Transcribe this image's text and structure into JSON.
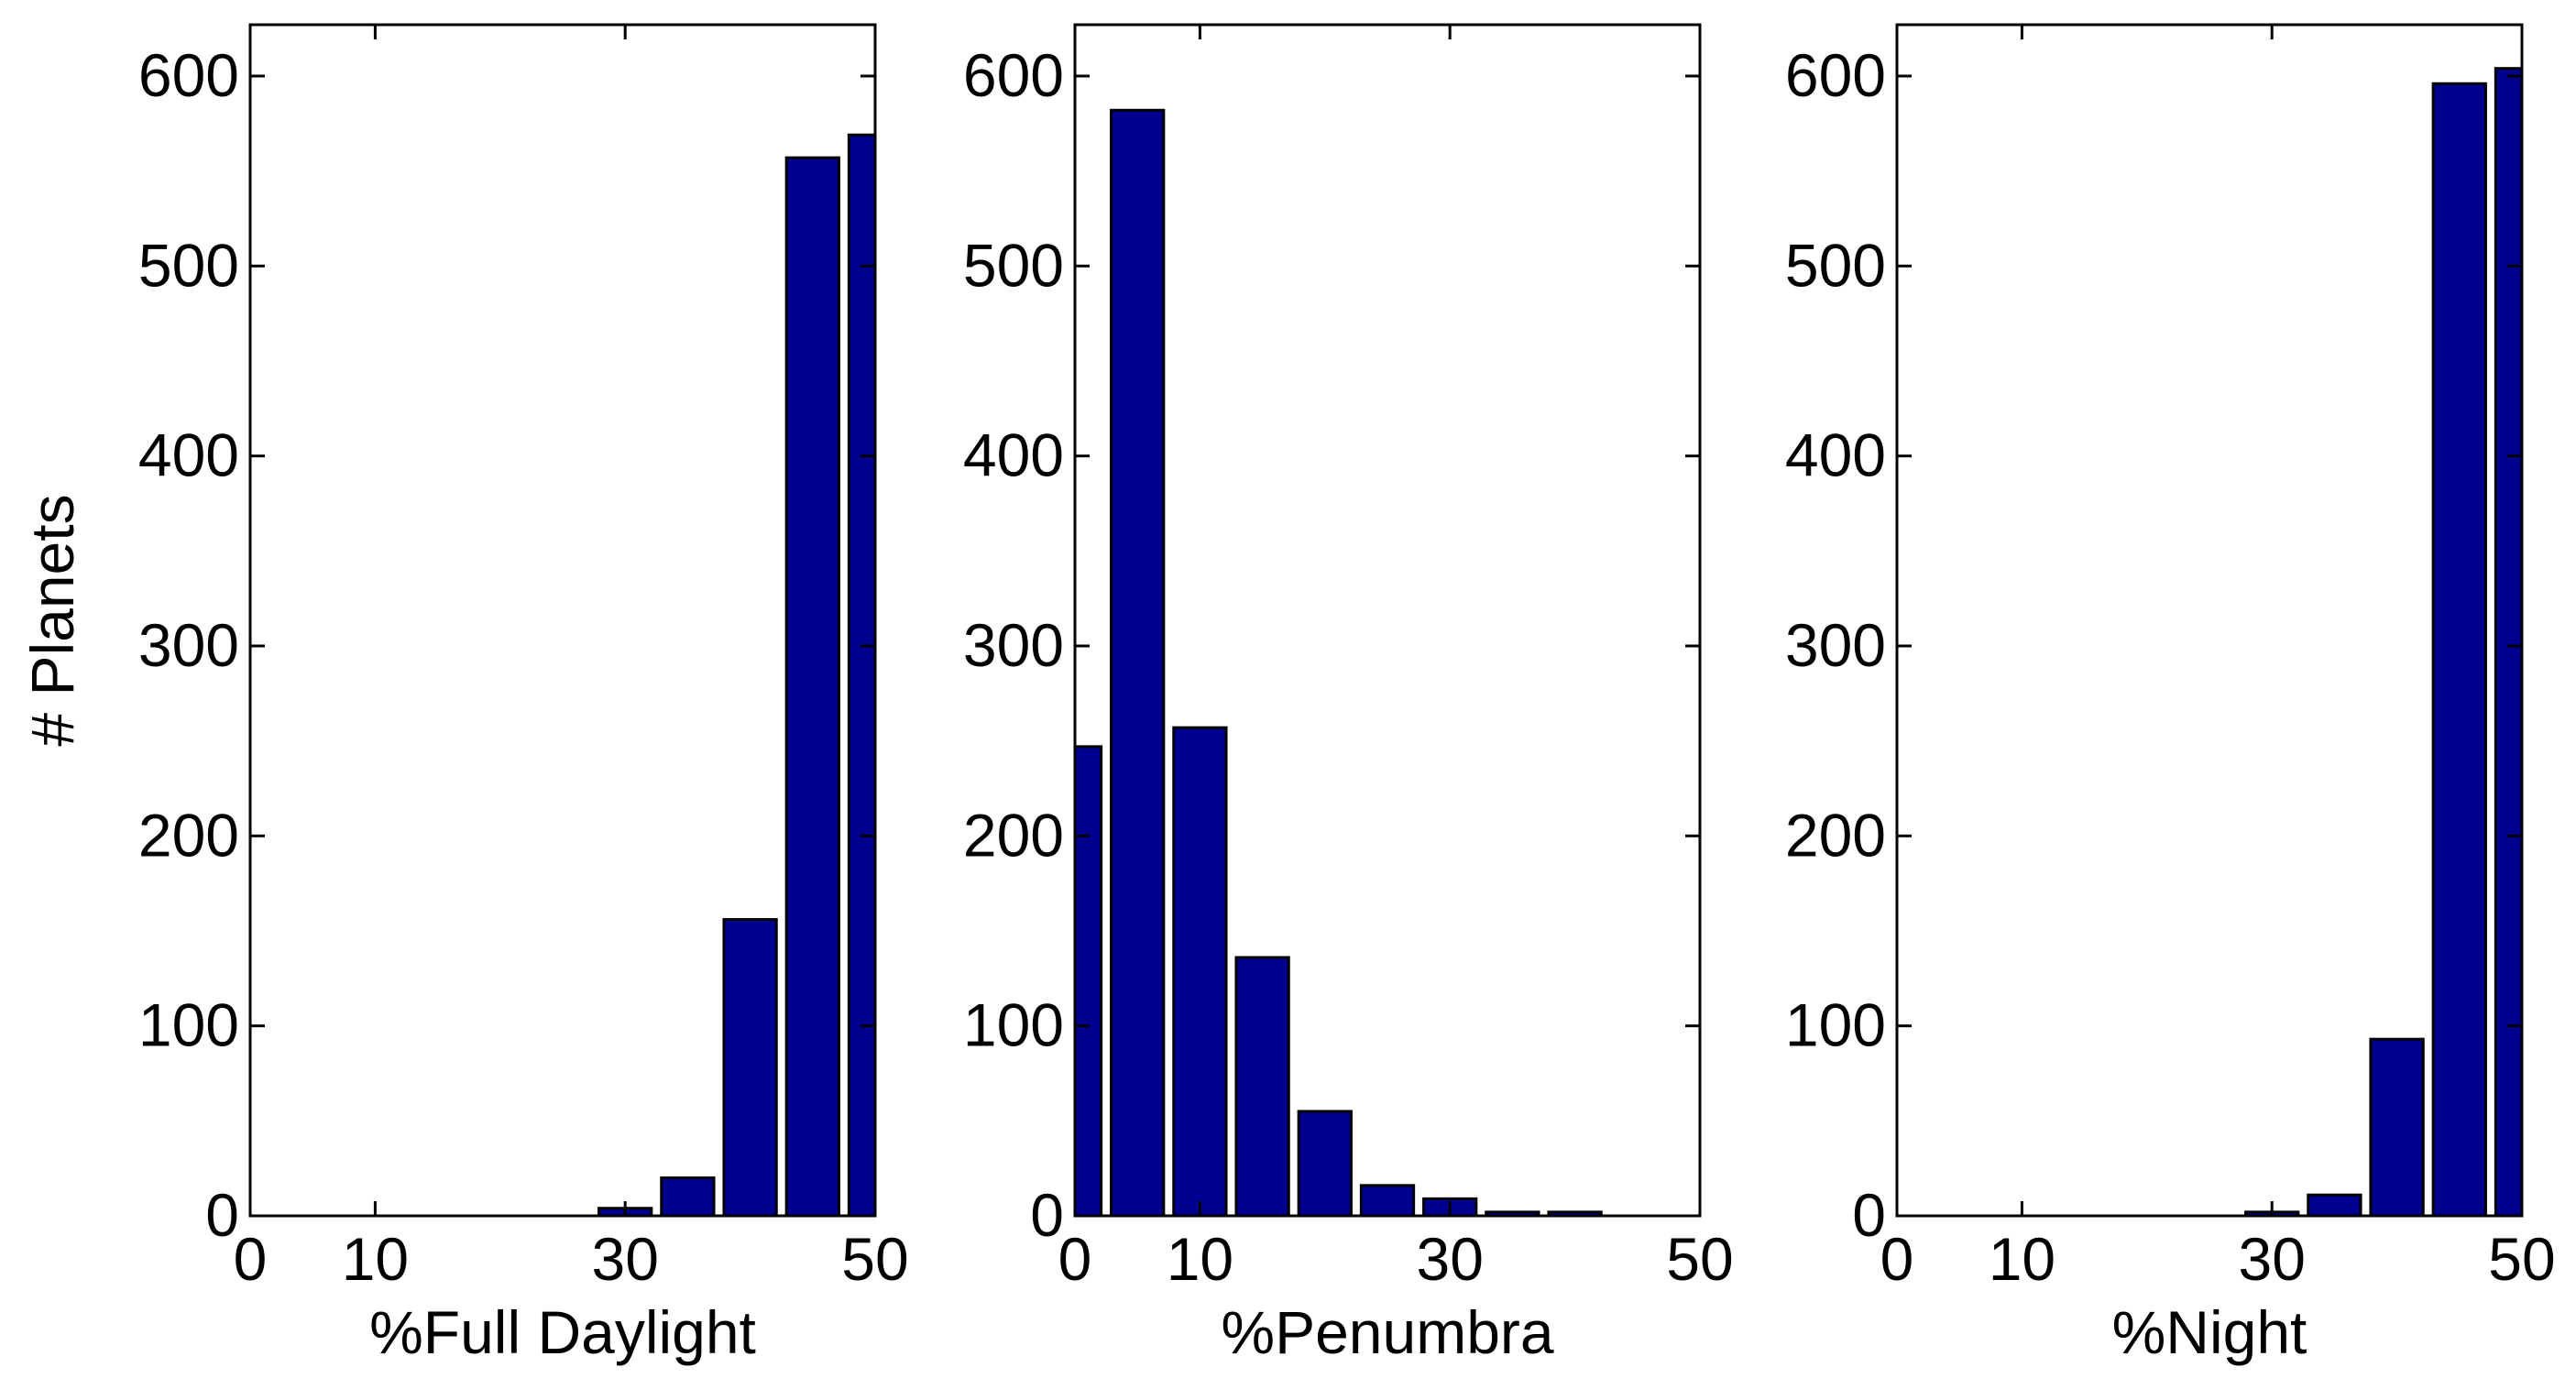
{
  "chart_data": [
    {
      "type": "bar",
      "xlabel": "%Full Daylight",
      "ylabel": "# Planets",
      "x": [
        0,
        5,
        10,
        15,
        20,
        25,
        30,
        35,
        40,
        45,
        50
      ],
      "values": [
        0,
        0,
        0,
        0,
        0,
        0,
        4,
        20,
        156,
        557,
        569
      ],
      "color": "#00008f",
      "xlim": [
        0,
        50
      ],
      "ylim": [
        0,
        627
      ],
      "xticks": [
        0,
        10,
        30,
        50
      ],
      "yticks": [
        0,
        100,
        200,
        300,
        400,
        500,
        600
      ]
    },
    {
      "type": "bar",
      "xlabel": "%Penumbra",
      "x": [
        0,
        5,
        10,
        15,
        20,
        25,
        30,
        35,
        40
      ],
      "values": [
        247,
        582,
        257,
        136,
        55,
        16,
        9,
        2,
        2
      ],
      "color": "#00008f",
      "xlim": [
        0,
        50
      ],
      "ylim": [
        0,
        627
      ],
      "xticks": [
        0,
        10,
        30,
        50
      ],
      "yticks": [
        0,
        100,
        200,
        300,
        400,
        500,
        600
      ]
    },
    {
      "type": "bar",
      "xlabel": "%Night",
      "x": [
        0,
        5,
        10,
        15,
        20,
        25,
        30,
        35,
        40,
        45,
        50
      ],
      "values": [
        0,
        0,
        0,
        0,
        0,
        0,
        2,
        11,
        93,
        596,
        604
      ],
      "color": "#00008f",
      "xlim": [
        0,
        50
      ],
      "ylim": [
        0,
        627
      ],
      "xticks": [
        0,
        10,
        30,
        50
      ],
      "yticks": [
        0,
        100,
        200,
        300,
        400,
        500,
        600
      ]
    }
  ]
}
